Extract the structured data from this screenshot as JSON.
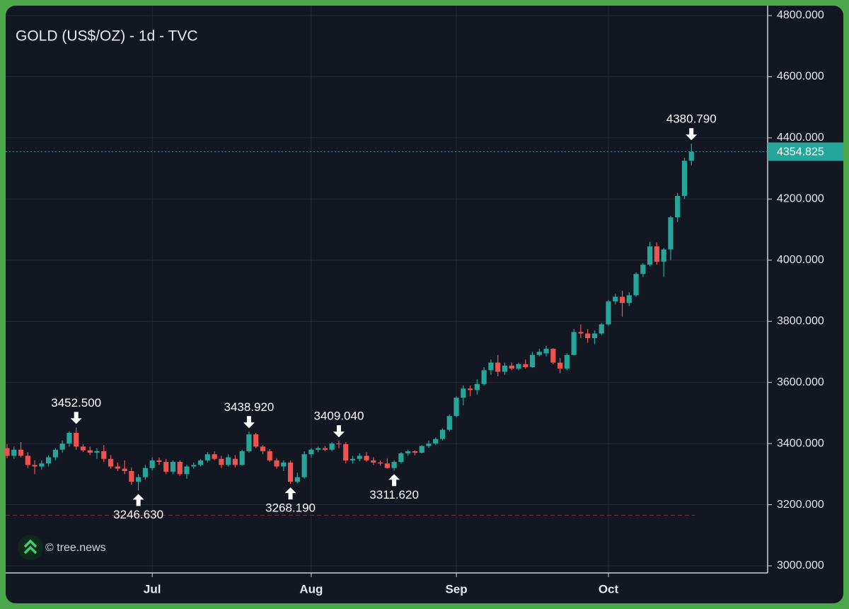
{
  "chart_data": {
    "type": "candlestick",
    "title": "GOLD (US$/OZ) - 1d - TVC",
    "watermark": "© tree.news",
    "up_color": "#26a69a",
    "down_color": "#ef5350",
    "grid": true,
    "ylim": [
      3000,
      4800
    ],
    "yticks": [
      {
        "value": 3000,
        "label": "3000.000"
      },
      {
        "value": 3200,
        "label": "3200.000"
      },
      {
        "value": 3400,
        "label": "3400.000"
      },
      {
        "value": 3600,
        "label": "3600.000"
      },
      {
        "value": 3800,
        "label": "3800.000"
      },
      {
        "value": 4000,
        "label": "4000.000"
      },
      {
        "value": 4200,
        "label": "4200.000"
      },
      {
        "value": 4400,
        "label": "4400.000"
      },
      {
        "value": 4600,
        "label": "4600.000"
      },
      {
        "value": 4800,
        "label": "4800.000"
      }
    ],
    "last_price": 4354.825,
    "dashed_level": 3165,
    "categories": [
      null,
      null,
      null,
      null,
      null,
      null,
      null,
      null,
      null,
      null,
      null,
      null,
      null,
      null,
      null,
      null,
      null,
      null,
      null,
      null,
      null,
      "Jul",
      null,
      null,
      null,
      null,
      null,
      null,
      null,
      null,
      null,
      null,
      null,
      null,
      null,
      null,
      null,
      null,
      null,
      null,
      null,
      null,
      null,
      null,
      "Aug",
      null,
      null,
      null,
      null,
      null,
      null,
      null,
      null,
      null,
      null,
      null,
      null,
      null,
      null,
      null,
      null,
      null,
      null,
      null,
      null,
      "Sep",
      null,
      null,
      null,
      null,
      null,
      null,
      null,
      null,
      null,
      null,
      null,
      null,
      null,
      null,
      null,
      null,
      null,
      null,
      null,
      null,
      null,
      "Oct",
      null,
      null,
      null,
      null,
      null,
      null,
      null,
      null,
      null,
      null,
      null,
      null
    ],
    "ohlc": [
      [
        3385,
        3398,
        3352,
        3360
      ],
      [
        3360,
        3390,
        3350,
        3380
      ],
      [
        3380,
        3405,
        3355,
        3360
      ],
      [
        3360,
        3372,
        3320,
        3330
      ],
      [
        3330,
        3345,
        3300,
        3325
      ],
      [
        3325,
        3345,
        3315,
        3335
      ],
      [
        3335,
        3362,
        3325,
        3355
      ],
      [
        3355,
        3385,
        3345,
        3380
      ],
      [
        3380,
        3410,
        3370,
        3400
      ],
      [
        3400,
        3440,
        3390,
        3435
      ],
      [
        3435,
        3452.5,
        3380,
        3390
      ],
      [
        3390,
        3398,
        3372,
        3378
      ],
      [
        3378,
        3390,
        3362,
        3370
      ],
      [
        3370,
        3385,
        3350,
        3375
      ],
      [
        3375,
        3395,
        3340,
        3350
      ],
      [
        3350,
        3362,
        3318,
        3325
      ],
      [
        3325,
        3338,
        3310,
        3318
      ],
      [
        3318,
        3345,
        3300,
        3310
      ],
      [
        3310,
        3322,
        3265,
        3275
      ],
      [
        3275,
        3300,
        3246.63,
        3290
      ],
      [
        3290,
        3330,
        3282,
        3320
      ],
      [
        3320,
        3355,
        3312,
        3345
      ],
      [
        3345,
        3355,
        3330,
        3340
      ],
      [
        3340,
        3350,
        3300,
        3308
      ],
      [
        3308,
        3345,
        3300,
        3340
      ],
      [
        3340,
        3345,
        3295,
        3300
      ],
      [
        3300,
        3330,
        3285,
        3325
      ],
      [
        3325,
        3338,
        3318,
        3330
      ],
      [
        3330,
        3350,
        3325,
        3345
      ],
      [
        3345,
        3372,
        3338,
        3365
      ],
      [
        3365,
        3375,
        3345,
        3350
      ],
      [
        3350,
        3360,
        3320,
        3330
      ],
      [
        3330,
        3365,
        3325,
        3355
      ],
      [
        3350,
        3362,
        3322,
        3330
      ],
      [
        3330,
        3380,
        3328,
        3375
      ],
      [
        3375,
        3438.92,
        3370,
        3430
      ],
      [
        3430,
        3435,
        3385,
        3390
      ],
      [
        3390,
        3395,
        3365,
        3375
      ],
      [
        3375,
        3382,
        3340,
        3345
      ],
      [
        3345,
        3352,
        3318,
        3325
      ],
      [
        3325,
        3345,
        3310,
        3338
      ],
      [
        3338,
        3345,
        3268.19,
        3275
      ],
      [
        3275,
        3305,
        3270,
        3290
      ],
      [
        3290,
        3375,
        3285,
        3365
      ],
      [
        3365,
        3385,
        3355,
        3380
      ],
      [
        3380,
        3390,
        3372,
        3385
      ],
      [
        3385,
        3392,
        3375,
        3380
      ],
      [
        3380,
        3405,
        3375,
        3400
      ],
      [
        3400,
        3409.04,
        3385,
        3398
      ],
      [
        3398,
        3405,
        3335,
        3345
      ],
      [
        3345,
        3360,
        3335,
        3350
      ],
      [
        3350,
        3368,
        3342,
        3360
      ],
      [
        3360,
        3372,
        3340,
        3345
      ],
      [
        3345,
        3355,
        3330,
        3338
      ],
      [
        3338,
        3345,
        3328,
        3335
      ],
      [
        3335,
        3352,
        3318,
        3320
      ],
      [
        3320,
        3345,
        3311.62,
        3340
      ],
      [
        3340,
        3372,
        3335,
        3368
      ],
      [
        3368,
        3380,
        3360,
        3375
      ],
      [
        3375,
        3378,
        3362,
        3370
      ],
      [
        3370,
        3395,
        3368,
        3392
      ],
      [
        3392,
        3410,
        3386,
        3400
      ],
      [
        3400,
        3420,
        3395,
        3415
      ],
      [
        3415,
        3450,
        3410,
        3445
      ],
      [
        3445,
        3495,
        3440,
        3490
      ],
      [
        3490,
        3555,
        3485,
        3550
      ],
      [
        3550,
        3590,
        3525,
        3580
      ],
      [
        3580,
        3590,
        3555,
        3575
      ],
      [
        3575,
        3610,
        3560,
        3595
      ],
      [
        3595,
        3650,
        3590,
        3640
      ],
      [
        3640,
        3675,
        3625,
        3665
      ],
      [
        3665,
        3690,
        3620,
        3635
      ],
      [
        3635,
        3665,
        3625,
        3655
      ],
      [
        3655,
        3665,
        3640,
        3645
      ],
      [
        3645,
        3665,
        3640,
        3660
      ],
      [
        3660,
        3675,
        3645,
        3650
      ],
      [
        3650,
        3700,
        3648,
        3690
      ],
      [
        3690,
        3710,
        3685,
        3700
      ],
      [
        3695,
        3720,
        3685,
        3710
      ],
      [
        3710,
        3712,
        3660,
        3665
      ],
      [
        3665,
        3680,
        3630,
        3645
      ],
      [
        3645,
        3695,
        3640,
        3690
      ],
      [
        3690,
        3775,
        3688,
        3765
      ],
      [
        3765,
        3790,
        3745,
        3760
      ],
      [
        3760,
        3775,
        3730,
        3745
      ],
      [
        3745,
        3770,
        3725,
        3760
      ],
      [
        3760,
        3795,
        3755,
        3790
      ],
      [
        3790,
        3870,
        3785,
        3865
      ],
      [
        3865,
        3890,
        3855,
        3880
      ],
      [
        3880,
        3900,
        3815,
        3860
      ],
      [
        3860,
        3895,
        3850,
        3885
      ],
      [
        3885,
        3960,
        3880,
        3955
      ],
      [
        3955,
        3990,
        3945,
        3985
      ],
      [
        3985,
        4060,
        3980,
        4045
      ],
      [
        4045,
        4058,
        3985,
        3995
      ],
      [
        3995,
        4040,
        3945,
        4035
      ],
      [
        4035,
        4145,
        4000,
        4140
      ],
      [
        4140,
        4220,
        4125,
        4210
      ],
      [
        4210,
        4335,
        4200,
        4325
      ],
      [
        4325,
        4380.79,
        4310,
        4354.825
      ]
    ],
    "annotations": [
      {
        "bar": 10,
        "label": "3452.500",
        "side": "above"
      },
      {
        "bar": 19,
        "label": "3246.630",
        "side": "below"
      },
      {
        "bar": 35,
        "label": "3438.920",
        "side": "above"
      },
      {
        "bar": 41,
        "label": "3268.190",
        "side": "below"
      },
      {
        "bar": 48,
        "label": "3409.040",
        "side": "above"
      },
      {
        "bar": 56,
        "label": "3311.620",
        "side": "below"
      },
      {
        "bar": 99,
        "label": "4380.790",
        "side": "above"
      }
    ]
  }
}
